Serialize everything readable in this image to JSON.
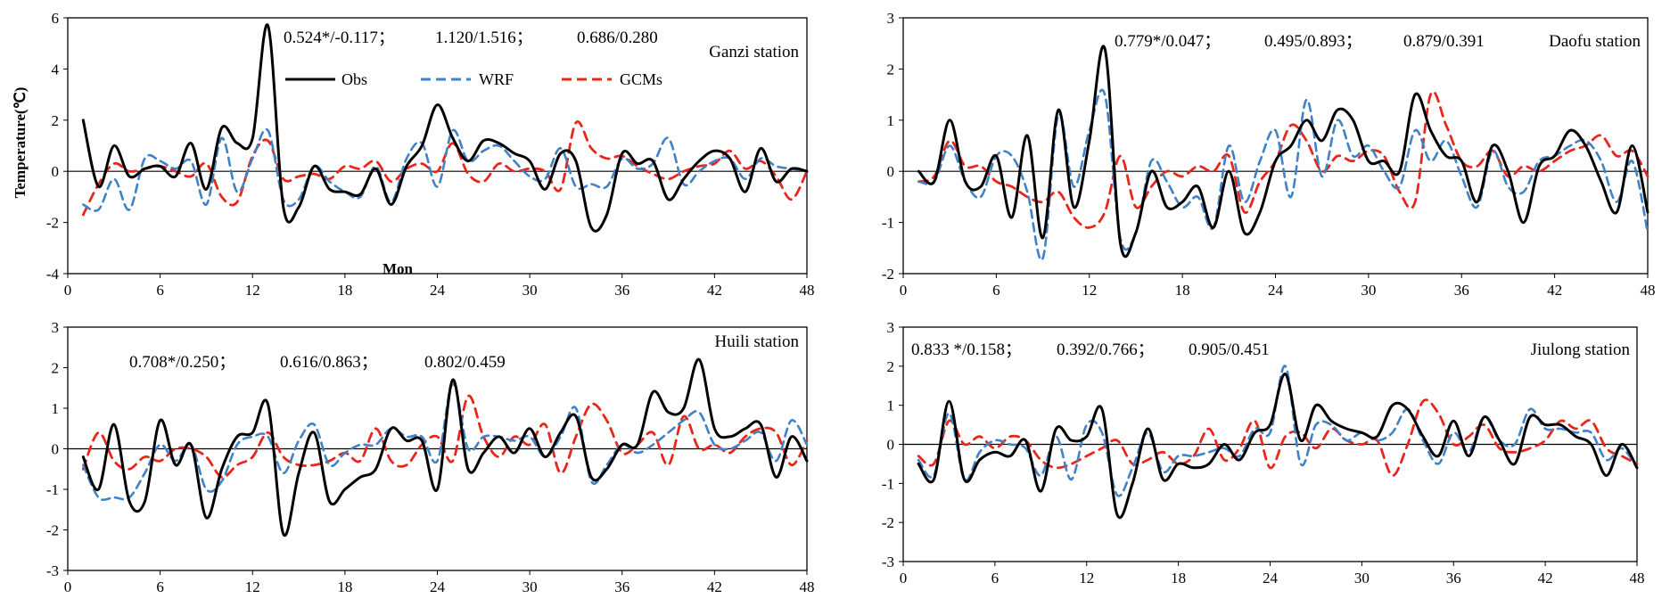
{
  "figure": {
    "y_axis_title": "Temperature(℃)",
    "x_axis_title": "Mon",
    "legend": [
      {
        "name": "Obs",
        "color": "#000000",
        "dash": "solid"
      },
      {
        "name": "WRF",
        "color": "#3f82c8",
        "dash": "dashed"
      },
      {
        "name": "GCMs",
        "color": "#e8261c",
        "dash": "dashed"
      }
    ]
  },
  "chart_data": [
    {
      "type": "line",
      "station": "Ganzi station",
      "stats": [
        "0.524*/-0.117；",
        "1.120/1.516；",
        "0.686/0.280"
      ],
      "xlim": [
        0,
        48
      ],
      "xticks": [
        0,
        6,
        12,
        18,
        24,
        30,
        36,
        42,
        48
      ],
      "ylim": [
        -4,
        6
      ],
      "yticks": [
        -4,
        -2,
        0,
        2,
        4,
        6
      ],
      "x": [
        1,
        2,
        3,
        4,
        5,
        6,
        7,
        8,
        9,
        10,
        11,
        12,
        13,
        14,
        15,
        16,
        17,
        18,
        19,
        20,
        21,
        22,
        23,
        24,
        25,
        26,
        27,
        28,
        29,
        30,
        31,
        32,
        33,
        34,
        35,
        36,
        37,
        38,
        39,
        40,
        41,
        42,
        43,
        44,
        45,
        46,
        47,
        48
      ],
      "series": [
        {
          "name": "Obs",
          "values": [
            2.0,
            -0.6,
            1.0,
            -0.2,
            0.1,
            0.2,
            -0.2,
            1.1,
            -0.7,
            1.7,
            1.1,
            1.3,
            5.7,
            -1.4,
            -1.4,
            0.2,
            -0.7,
            -0.8,
            -0.9,
            0.1,
            -1.3,
            0.2,
            1.0,
            2.6,
            1.3,
            0.4,
            1.2,
            1.1,
            0.7,
            0.4,
            -0.7,
            0.7,
            0.4,
            -2.2,
            -1.7,
            0.7,
            0.3,
            0.4,
            -1.1,
            -0.3,
            0.4,
            0.8,
            0.5,
            -0.8,
            0.9,
            -0.4,
            0.1,
            0.0
          ]
        },
        {
          "name": "WRF",
          "values": [
            -1.3,
            -1.5,
            -0.3,
            -1.5,
            0.5,
            0.4,
            0.1,
            0.4,
            -1.3,
            1.3,
            -0.8,
            0.5,
            1.6,
            -1.1,
            -1.1,
            0.2,
            -0.4,
            -0.8,
            -1.0,
            0.2,
            -1.2,
            0.5,
            1.1,
            -0.6,
            1.6,
            0.4,
            0.8,
            1.0,
            0.4,
            -0.2,
            -0.3,
            0.9,
            -0.6,
            -0.5,
            -0.6,
            0.5,
            0.1,
            0.3,
            1.3,
            -0.5,
            0.0,
            0.4,
            0.5,
            -0.3,
            0.5,
            0.2,
            0.1,
            0.0
          ]
        },
        {
          "name": "GCMs",
          "values": [
            -1.7,
            -0.5,
            0.3,
            0.0,
            0.1,
            0.2,
            0.0,
            -0.2,
            0.3,
            -1.0,
            -1.2,
            0.6,
            1.2,
            -0.3,
            -0.2,
            -0.1,
            -0.3,
            0.2,
            0.1,
            0.4,
            -0.4,
            0.1,
            0.3,
            0.0,
            1.1,
            -0.1,
            -0.4,
            0.3,
            0.0,
            0.1,
            0.0,
            -0.7,
            1.9,
            0.9,
            0.5,
            0.6,
            0.2,
            -0.1,
            -0.3,
            0.0,
            0.2,
            0.3,
            0.8,
            0.1,
            0.4,
            -0.2,
            -1.1,
            0.0
          ]
        }
      ]
    },
    {
      "type": "line",
      "station": "Daofu station",
      "stats": [
        "0.779*/0.047；",
        "0.495/0.893；",
        "0.879/0.391"
      ],
      "xlim": [
        0,
        48
      ],
      "xticks": [
        0,
        6,
        12,
        18,
        24,
        30,
        36,
        42,
        48
      ],
      "ylim": [
        -2,
        3
      ],
      "yticks": [
        -2,
        -1,
        0,
        1,
        2,
        3
      ],
      "x": [
        1,
        2,
        3,
        4,
        5,
        6,
        7,
        8,
        9,
        10,
        11,
        12,
        13,
        14,
        15,
        16,
        17,
        18,
        19,
        20,
        21,
        22,
        23,
        24,
        25,
        26,
        27,
        28,
        29,
        30,
        31,
        32,
        33,
        34,
        35,
        36,
        37,
        38,
        39,
        40,
        41,
        42,
        43,
        44,
        45,
        46,
        47,
        48
      ],
      "series": [
        {
          "name": "Obs",
          "values": [
            0.0,
            -0.2,
            1.0,
            -0.2,
            -0.3,
            0.3,
            -0.9,
            0.7,
            -1.3,
            1.2,
            -0.7,
            0.6,
            2.4,
            -1.4,
            -1.2,
            0.0,
            -0.7,
            -0.6,
            -0.3,
            -1.1,
            0.0,
            -1.2,
            -0.8,
            0.2,
            0.5,
            1.0,
            0.6,
            1.2,
            1.0,
            0.2,
            0.2,
            0.0,
            1.5,
            0.8,
            0.3,
            0.2,
            -0.6,
            0.5,
            0.0,
            -1.0,
            0.1,
            0.3,
            0.8,
            0.5,
            -0.2,
            -0.8,
            0.5,
            -0.8
          ]
        },
        {
          "name": "WRF",
          "values": [
            -0.2,
            -0.2,
            0.5,
            -0.2,
            -0.5,
            0.3,
            0.3,
            -0.4,
            -1.7,
            1.1,
            -0.3,
            0.8,
            1.5,
            -1.3,
            -1.2,
            0.2,
            -0.2,
            -0.7,
            -0.5,
            -1.1,
            0.5,
            -0.6,
            0.2,
            0.8,
            -0.5,
            1.4,
            -0.1,
            1.0,
            0.3,
            0.5,
            0.0,
            -0.3,
            0.8,
            0.2,
            0.6,
            -0.1,
            -0.7,
            0.4,
            -0.3,
            -0.4,
            0.2,
            0.3,
            0.5,
            0.6,
            0.2,
            -0.6,
            0.2,
            -1.2
          ]
        },
        {
          "name": "GCMs",
          "values": [
            -0.2,
            -0.1,
            0.6,
            0.1,
            0.1,
            -0.2,
            -0.3,
            -0.5,
            -0.6,
            -0.4,
            -0.9,
            -1.1,
            -0.8,
            0.3,
            -0.7,
            -0.3,
            0.0,
            -0.1,
            0.1,
            0.0,
            0.3,
            -0.8,
            -0.2,
            0.2,
            0.9,
            0.6,
            0.0,
            0.3,
            0.2,
            0.4,
            0.3,
            -0.4,
            -0.6,
            1.5,
            0.9,
            0.2,
            0.1,
            0.4,
            -0.1,
            0.1,
            0.0,
            0.2,
            0.4,
            0.5,
            0.7,
            0.3,
            0.4,
            -0.1
          ]
        }
      ]
    },
    {
      "type": "line",
      "station": "Huili station",
      "stats": [
        "0.708*/0.250；",
        "0.616/0.863；",
        "0.802/0.459"
      ],
      "xlim": [
        0,
        48
      ],
      "xticks": [
        0,
        6,
        12,
        18,
        24,
        30,
        36,
        42,
        48
      ],
      "ylim": [
        -3,
        3
      ],
      "yticks": [
        -3,
        -2,
        -1,
        0,
        1,
        2,
        3
      ],
      "x": [
        1,
        2,
        3,
        4,
        5,
        6,
        7,
        8,
        9,
        10,
        11,
        12,
        13,
        14,
        15,
        16,
        17,
        18,
        19,
        20,
        21,
        22,
        23,
        24,
        25,
        26,
        27,
        28,
        29,
        30,
        31,
        32,
        33,
        34,
        35,
        36,
        37,
        38,
        39,
        40,
        41,
        42,
        43,
        44,
        45,
        46,
        47,
        48
      ],
      "series": [
        {
          "name": "Obs",
          "values": [
            -0.2,
            -1.0,
            0.6,
            -1.3,
            -1.3,
            0.7,
            -0.4,
            0.1,
            -1.7,
            -0.5,
            0.3,
            0.4,
            1.1,
            -2.1,
            -0.6,
            0.4,
            -1.3,
            -1.0,
            -0.7,
            -0.5,
            0.5,
            0.2,
            0.2,
            -1.0,
            1.7,
            -0.5,
            -0.1,
            0.3,
            -0.1,
            0.5,
            -0.2,
            0.4,
            0.8,
            -0.7,
            -0.5,
            0.1,
            0.1,
            1.4,
            0.9,
            1.0,
            2.2,
            0.5,
            0.3,
            0.5,
            0.6,
            -0.7,
            0.3,
            -0.3
          ]
        },
        {
          "name": "WRF",
          "values": [
            -0.4,
            -1.2,
            -1.2,
            -1.2,
            -0.6,
            0.1,
            -0.3,
            0.1,
            -1.0,
            -0.8,
            0.1,
            0.3,
            0.3,
            -0.6,
            0.2,
            0.6,
            -0.4,
            -0.1,
            0.1,
            0.1,
            0.5,
            0.3,
            0.3,
            -0.3,
            1.6,
            0.0,
            0.3,
            0.3,
            0.2,
            0.3,
            -0.2,
            0.3,
            1.0,
            -0.8,
            -0.4,
            0.1,
            -0.1,
            0.1,
            0.4,
            0.7,
            0.9,
            0.1,
            0.0,
            0.2,
            0.4,
            -0.3,
            0.7,
            0.1
          ]
        },
        {
          "name": "GCMs",
          "values": [
            -0.5,
            0.4,
            -0.3,
            -0.5,
            -0.2,
            -0.3,
            0.0,
            0.0,
            -0.2,
            -0.7,
            -0.4,
            -0.2,
            0.4,
            -0.2,
            -0.4,
            -0.4,
            -0.3,
            -0.1,
            -0.3,
            0.5,
            -0.3,
            -0.4,
            0.1,
            0.3,
            -0.3,
            1.3,
            0.3,
            -0.2,
            0.3,
            0.1,
            0.6,
            -0.6,
            0.3,
            1.1,
            0.7,
            -0.1,
            0.1,
            0.4,
            -0.4,
            0.8,
            0.0,
            0.1,
            -0.1,
            0.3,
            0.5,
            0.4,
            -0.4,
            0.2
          ]
        }
      ]
    },
    {
      "type": "line",
      "station": "Jiulong station",
      "stats": [
        "0.833 */0.158；",
        "0.392/0.766；",
        "0.905/0.451"
      ],
      "xlim": [
        0,
        48
      ],
      "xticks": [
        0,
        6,
        12,
        18,
        24,
        30,
        36,
        42,
        48
      ],
      "ylim": [
        -3,
        3
      ],
      "yticks": [
        -3,
        -2,
        -1,
        0,
        1,
        2,
        3
      ],
      "x": [
        1,
        2,
        3,
        4,
        5,
        6,
        7,
        8,
        9,
        10,
        11,
        12,
        13,
        14,
        15,
        16,
        17,
        18,
        19,
        20,
        21,
        22,
        23,
        24,
        25,
        26,
        27,
        28,
        29,
        30,
        31,
        32,
        33,
        34,
        35,
        36,
        37,
        38,
        39,
        40,
        41,
        42,
        43,
        44,
        45,
        46,
        47,
        48
      ],
      "series": [
        {
          "name": "Obs",
          "values": [
            -0.5,
            -0.9,
            1.1,
            -0.9,
            -0.4,
            -0.2,
            -0.3,
            0.1,
            -1.2,
            0.4,
            0.1,
            0.2,
            0.9,
            -1.8,
            -1.0,
            0.4,
            -0.9,
            -0.5,
            -0.6,
            -0.5,
            0.0,
            -0.4,
            0.3,
            0.5,
            1.8,
            0.1,
            1.0,
            0.6,
            0.4,
            0.3,
            0.2,
            1.0,
            0.9,
            0.2,
            -0.3,
            0.6,
            -0.3,
            0.7,
            0.1,
            -0.5,
            0.7,
            0.5,
            0.5,
            0.2,
            0.0,
            -0.8,
            0.0,
            -0.6
          ]
        },
        {
          "name": "WRF",
          "values": [
            -0.4,
            -0.8,
            0.8,
            -0.9,
            -0.2,
            0.1,
            0.0,
            -0.1,
            -0.8,
            0.2,
            -0.9,
            0.5,
            0.3,
            -1.3,
            -0.6,
            0.3,
            -0.7,
            -0.3,
            -0.3,
            -0.2,
            -0.1,
            -0.3,
            0.4,
            0.3,
            2.0,
            -0.5,
            0.5,
            0.5,
            0.1,
            0.3,
            0.1,
            0.3,
            0.9,
            0.1,
            -0.5,
            0.3,
            -0.2,
            0.7,
            0.1,
            0.0,
            0.9,
            0.4,
            0.4,
            0.3,
            0.3,
            -0.4,
            -0.1,
            -0.6
          ]
        },
        {
          "name": "GCMs",
          "values": [
            -0.3,
            -0.5,
            0.6,
            0.0,
            0.2,
            -0.1,
            0.2,
            0.1,
            -0.4,
            -0.6,
            -0.5,
            -0.3,
            -0.1,
            0.1,
            -0.5,
            -0.4,
            -0.2,
            -0.5,
            -0.3,
            0.4,
            -0.4,
            -0.1,
            0.6,
            -0.6,
            0.2,
            0.3,
            -0.1,
            0.4,
            0.1,
            0.0,
            0.1,
            -0.8,
            0.0,
            1.1,
            0.8,
            0.0,
            0.2,
            0.5,
            -0.1,
            -0.2,
            -0.1,
            0.1,
            0.6,
            0.4,
            0.6,
            -0.1,
            -0.3,
            -0.5
          ]
        }
      ]
    }
  ]
}
